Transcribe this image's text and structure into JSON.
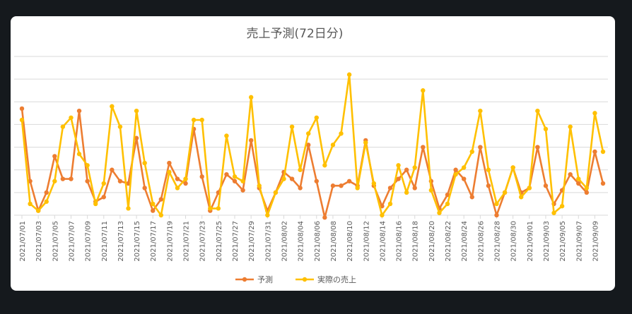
{
  "colors": {
    "page_bg": "#15191d",
    "card_bg": "#ffffff",
    "grid": "#d9d9d9",
    "forecast": "#ed7d31",
    "actual": "#ffc000",
    "text": "#595959"
  },
  "chart_data": {
    "type": "line",
    "title": "売上予測(72日分)",
    "xlabel": "",
    "ylabel": "",
    "y_axis_labels_shown": false,
    "ylim": [
      0,
      7
    ],
    "grid": "horizontal",
    "legend_position": "bottom",
    "x": [
      "2021/07/01",
      "2021/07/02",
      "2021/07/03",
      "2021/07/04",
      "2021/07/05",
      "2021/07/06",
      "2021/07/07",
      "2021/07/08",
      "2021/07/09",
      "2021/07/10",
      "2021/07/11",
      "2021/07/12",
      "2021/07/13",
      "2021/07/14",
      "2021/07/15",
      "2021/07/16",
      "2021/07/17",
      "2021/07/18",
      "2021/07/19",
      "2021/07/20",
      "2021/07/21",
      "2021/07/22",
      "2021/07/23",
      "2021/07/24",
      "2021/07/25",
      "2021/07/26",
      "2021/07/27",
      "2021/07/28",
      "2021/07/29",
      "2021/07/30",
      "2021/07/31",
      "2021/08/01",
      "2021/08/02",
      "2021/08/03",
      "2021/08/04",
      "2021/08/05",
      "2021/08/06",
      "2021/08/07",
      "2021/08/08",
      "2021/08/09",
      "2021/08/10",
      "2021/08/11",
      "2021/08/12",
      "2021/08/13",
      "2021/08/14",
      "2021/08/15",
      "2021/08/16",
      "2021/08/17",
      "2021/08/18",
      "2021/08/19",
      "2021/08/20",
      "2021/08/21",
      "2021/08/22",
      "2021/08/23",
      "2021/08/24",
      "2021/08/25",
      "2021/08/26",
      "2021/08/27",
      "2021/08/28",
      "2021/08/29",
      "2021/08/30",
      "2021/08/31",
      "2021/09/01",
      "2021/09/02",
      "2021/09/03",
      "2021/09/04",
      "2021/09/05",
      "2021/09/06",
      "2021/09/07",
      "2021/09/08",
      "2021/09/09",
      "2021/09/10"
    ],
    "tick_labels": [
      "2021/07/01",
      "2021/07/03",
      "2021/07/05",
      "2021/07/07",
      "2021/07/09",
      "2021/07/11",
      "2021/07/13",
      "2021/07/15",
      "2021/07/17",
      "2021/07/19",
      "2021/07/21",
      "2021/07/23",
      "2021/07/25",
      "2021/07/27",
      "2021/07/29",
      "2021/07/31",
      "2021/08/02",
      "2021/08/04",
      "2021/08/06",
      "2021/08/08",
      "2021/08/10",
      "2021/08/12",
      "2021/08/14",
      "2021/08/16",
      "2021/08/18",
      "2021/08/20",
      "2021/08/22",
      "2021/08/24",
      "2021/08/26",
      "2021/08/28",
      "2021/08/30",
      "2021/09/01",
      "2021/09/03",
      "2021/09/05",
      "2021/09/07",
      "2021/09/09"
    ],
    "series": [
      {
        "name": "予測",
        "color": "#ed7d31",
        "values": [
          4.7,
          1.5,
          0.2,
          1.0,
          2.6,
          1.6,
          1.6,
          4.6,
          1.5,
          0.6,
          0.8,
          2.0,
          1.5,
          1.4,
          3.4,
          1.2,
          0.2,
          0.7,
          2.3,
          1.6,
          1.4,
          3.8,
          1.7,
          0.2,
          1.0,
          1.8,
          1.5,
          1.1,
          3.3,
          1.2,
          0.2,
          1.0,
          1.9,
          1.6,
          1.2,
          3.1,
          1.5,
          -0.1,
          1.3,
          1.3,
          1.5,
          1.3,
          3.3,
          1.3,
          0.4,
          1.2,
          1.6,
          2.0,
          1.2,
          3.0,
          1.5,
          0.3,
          0.9,
          2.0,
          1.6,
          0.8,
          3.0,
          1.3,
          0.0,
          1.0,
          2.1,
          1.0,
          1.2,
          3.0,
          1.3,
          0.5,
          1.1,
          1.8,
          1.4,
          1.0,
          2.8,
          1.4
        ]
      },
      {
        "name": "実際の売上",
        "color": "#ffc000",
        "values": [
          4.2,
          0.5,
          0.2,
          0.6,
          1.5,
          3.9,
          4.3,
          2.7,
          2.2,
          0.5,
          1.4,
          4.8,
          3.9,
          0.3,
          4.6,
          2.3,
          0.5,
          0.0,
          1.9,
          1.2,
          1.6,
          4.2,
          4.2,
          0.3,
          0.3,
          3.5,
          1.7,
          1.5,
          5.2,
          1.3,
          0.0,
          1.0,
          1.6,
          3.9,
          2.0,
          3.6,
          4.3,
          2.2,
          3.1,
          3.6,
          6.2,
          1.2,
          3.2,
          1.4,
          0.0,
          0.5,
          2.2,
          1.0,
          2.1,
          5.5,
          1.1,
          0.1,
          0.5,
          1.8,
          2.1,
          2.8,
          4.6,
          2.0,
          0.5,
          1.0,
          2.1,
          0.8,
          1.2,
          4.6,
          3.8,
          0.1,
          0.4,
          3.9,
          1.6,
          1.2,
          4.5,
          2.8
        ]
      }
    ]
  }
}
